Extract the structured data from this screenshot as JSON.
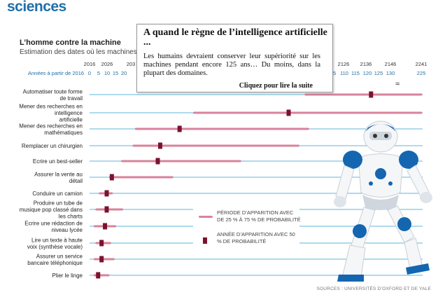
{
  "header": {
    "section": "sciences"
  },
  "chart_head": {
    "title": "L’homme contre la machine",
    "subtitle": "Estimation des dates où les machines au"
  },
  "popup": {
    "title": "A quand le règne de l’intelligence artificielle ...",
    "body": "Les humains devraient conserver leur supériorité sur les machines pendant encore 125 ans… Du moins, dans la plupart des domaines.",
    "link": "Cliquez pour lire la suite"
  },
  "legend": {
    "range_label": "PÉRIODE D’APPARITION AVEC DE 25 % À 75 % DE PROBABILITÉ",
    "median_label": "ANNÉE D’APPARITION AVEC 50 % DE PROBABILITÉ"
  },
  "sources": "SOURCES : UNIVERSITÉS D’OXFORD ET DE YALE",
  "colors": {
    "accent": "#1f6fa8",
    "range": "#d9829b",
    "median": "#7a1230",
    "baseline": "#2a9bd3"
  },
  "chart_data": {
    "type": "range",
    "axis_row_label": "Années à partir de 2016",
    "year_ticks": [
      "2016",
      "2026",
      "203",
      "2126",
      "2136",
      "2146",
      "2241"
    ],
    "offset_ticks": [
      "0",
      "5",
      "10",
      "15",
      "20",
      "05",
      "110",
      "115",
      "120",
      "125",
      "130",
      "225"
    ],
    "axis_break": "≈",
    "tasks": [
      {
        "label": "Automatiser toute forme de travail",
        "range": [
          95,
          225
        ],
        "median": 122
      },
      {
        "label": "Mener des recherches en intelligence artificielle",
        "range": [
          49,
          225
        ],
        "median": 88
      },
      {
        "label": "Mener des recherches en mathématiques",
        "range": [
          25,
          96
        ],
        "median": 43
      },
      {
        "label": "Remplacer un chirurgien",
        "range": [
          24,
          92
        ],
        "median": 35
      },
      {
        "label": "Ecrire un best-seller",
        "range": [
          19,
          68
        ],
        "median": 34
      },
      {
        "label": "Assurer la vente au détail",
        "range": [
          12,
          40
        ],
        "median": 13
      },
      {
        "label": "Conduire un camion",
        "range": [
          6,
          13
        ],
        "median": 10
      },
      {
        "label": "Produire un tube de musique pop classé dans les charts",
        "range": [
          4,
          19
        ],
        "median": 10
      },
      {
        "label": "Ecrire une rédaction de niveau lycée",
        "range": [
          3,
          15
        ],
        "median": 9
      },
      {
        "label": "Lire un texte à haute voix (synthèse vocale)",
        "range": [
          4,
          12
        ],
        "median": 7
      },
      {
        "label": "Assurer un service bancaire téléphonique",
        "range": [
          3,
          14
        ],
        "median": 7
      },
      {
        "label": "Plier le linge",
        "range": [
          3,
          11
        ],
        "median": 5
      }
    ]
  }
}
